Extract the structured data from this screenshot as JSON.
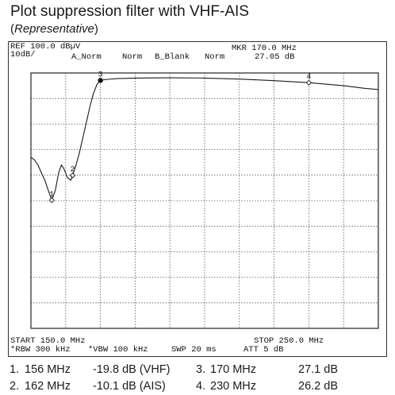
{
  "header": {
    "title": "Plot suppression filter with VHF-AIS",
    "subtitle_paren_open": "(",
    "subtitle_italic": "Representative",
    "subtitle_paren_close": ")"
  },
  "analyzer": {
    "ref": "REF 100.0 dBµV",
    "scale": "10dB/",
    "mode_a": "A_Norm",
    "mode_norm": "Norm",
    "mode_b": "B_Blank",
    "mode_norm2": "Norm",
    "mkr_freq": "MKR 170.0 MHz",
    "mkr_level": "27.05 dB",
    "start": "START 150.0 MHz",
    "stop": "STOP 250.0 MHz",
    "rbw": "*RBW 300 kHz",
    "vbw": "*VBW 100 kHz",
    "swp": "SWP 20 ms",
    "att": "ATT 5 dB"
  },
  "markers": [
    {
      "num": "1.",
      "freq": "156 MHz",
      "value": "-19.8 dB (VHF)"
    },
    {
      "num": "2.",
      "freq": "162 MHz",
      "value": "-10.1 dB (AIS)"
    },
    {
      "num": "3.",
      "freq": "170 MHz",
      "value": "27.1 dB"
    },
    {
      "num": "4.",
      "freq": "230 MHz",
      "value": "26.2 dB"
    }
  ],
  "chart_data": {
    "type": "line",
    "xlim": [
      150,
      250
    ],
    "ylim": [
      -70,
      30
    ],
    "grid": true,
    "trace_color": "#1a1a1a",
    "trace": [
      [
        150,
        -3
      ],
      [
        151,
        -4
      ],
      [
        152,
        -6
      ],
      [
        153,
        -9
      ],
      [
        154,
        -12
      ],
      [
        155,
        -16
      ],
      [
        156,
        -19.8
      ],
      [
        157,
        -16
      ],
      [
        158,
        -9
      ],
      [
        158.8,
        -6
      ],
      [
        159.5,
        -7.5
      ],
      [
        160.5,
        -11
      ],
      [
        161.5,
        -12
      ],
      [
        162,
        -10.1
      ],
      [
        163,
        -6
      ],
      [
        164,
        -1
      ],
      [
        165,
        5
      ],
      [
        166,
        11
      ],
      [
        167,
        17
      ],
      [
        168,
        22
      ],
      [
        169,
        25.5
      ],
      [
        170,
        27.1
      ],
      [
        172,
        27.5
      ],
      [
        175,
        27.8
      ],
      [
        180,
        28
      ],
      [
        190,
        28.1
      ],
      [
        200,
        28
      ],
      [
        210,
        27.6
      ],
      [
        220,
        27
      ],
      [
        230,
        26.2
      ],
      [
        240,
        25
      ],
      [
        246,
        24
      ],
      [
        250,
        23.5
      ]
    ],
    "markers": [
      {
        "label": "1",
        "x": 156,
        "y": -19.8
      },
      {
        "label": "2",
        "x": 162,
        "y": -10.1
      },
      {
        "label": "3",
        "x": 170,
        "y": 27.1
      },
      {
        "label": "4",
        "x": 230,
        "y": 26.2
      }
    ]
  }
}
